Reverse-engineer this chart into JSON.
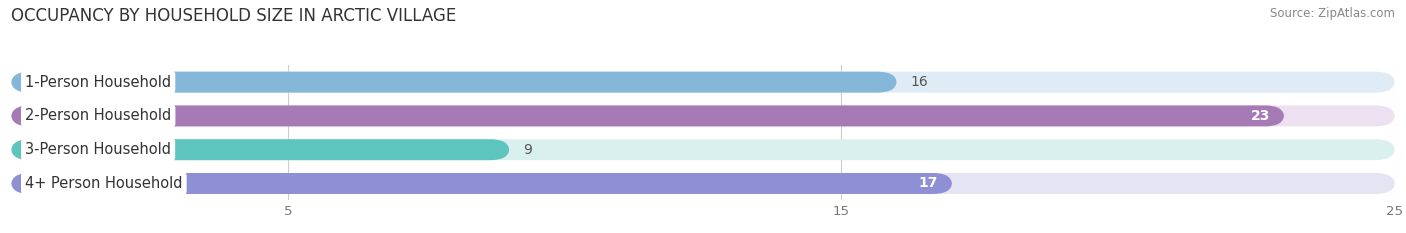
{
  "title": "OCCUPANCY BY HOUSEHOLD SIZE IN ARCTIC VILLAGE",
  "source": "Source: ZipAtlas.com",
  "categories": [
    "1-Person Household",
    "2-Person Household",
    "3-Person Household",
    "4+ Person Household"
  ],
  "values": [
    16,
    23,
    9,
    17
  ],
  "bar_colors": [
    "#85b8d8",
    "#a67bb5",
    "#5ec4be",
    "#8e8fd4"
  ],
  "bar_bg_colors": [
    "#e0ecf5",
    "#ede0f0",
    "#daf0ee",
    "#e4e4f2"
  ],
  "value_colors": [
    "#555555",
    "#ffffff",
    "#555555",
    "#ffffff"
  ],
  "xlim": [
    0,
    25
  ],
  "xticks": [
    5,
    15,
    25
  ],
  "title_fontsize": 12,
  "label_fontsize": 10.5,
  "value_fontsize": 10,
  "background_color": "#ffffff"
}
